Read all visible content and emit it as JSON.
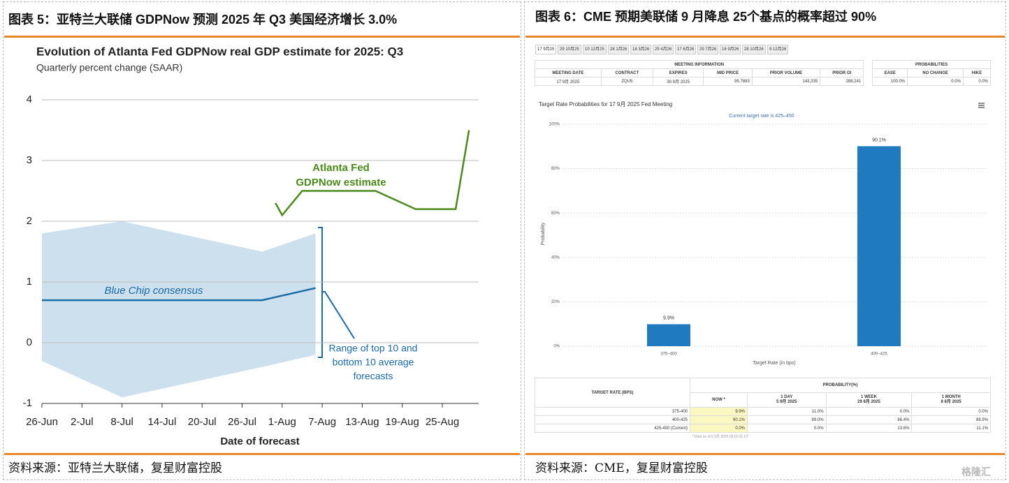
{
  "panels": [
    {
      "header": "图表 5：亚特兰大联储 GDPNow 预测 2025 年 Q3 美国经济增长 3.0%",
      "source": "资料来源：亚特兰大联储，复星财富控股"
    },
    {
      "header": "图表 6：CME 预期美联储 9 月降息 25个基点的概率超过 90%",
      "source": "资料来源：CME，复星财富控股"
    }
  ],
  "chart_data": [
    {
      "type": "line",
      "title": "Evolution of Atlanta Fed GDPNow real GDP estimate for 2025: Q3",
      "subtitle": "Quarterly percent change (SAAR)",
      "x_label": "Date of forecast",
      "categories": [
        "26-Jun",
        "2-Jul",
        "8-Jul",
        "14-Jul",
        "20-Jul",
        "26-Jul",
        "1-Aug",
        "7-Aug",
        "13-Aug",
        "19-Aug",
        "25-Aug"
      ],
      "ylim": [
        -1,
        4
      ],
      "yticks": [
        4,
        3,
        2,
        1,
        0,
        -1
      ],
      "grid": true,
      "series": [
        {
          "label": [
            "Blue Chip consensus"
          ],
          "color": "#1a6aa5",
          "x": [
            "26-Jun",
            "29-Jul",
            "6-Aug"
          ],
          "values": [
            0.7,
            0.7,
            0.9
          ]
        },
        {
          "label": [
            "Atlanta Fed",
            "GDPNow estimate"
          ],
          "color": "#4a8a1a",
          "x": [
            "31-Jul",
            "1-Aug",
            "4-Aug",
            "15-Aug",
            "21-Aug",
            "27-Aug",
            "29-Aug"
          ],
          "values": [
            2.3,
            2.1,
            2.5,
            2.5,
            2.2,
            2.2,
            3.5
          ]
        }
      ],
      "band": {
        "label": [
          "Range of top 10 and",
          "bottom 10 average",
          "forecasts"
        ],
        "color": "#c3dbeb",
        "x": [
          "26-Jun",
          "8-Jul",
          "29-Jul",
          "6-Aug"
        ],
        "upper": [
          1.8,
          2.0,
          1.5,
          1.8
        ],
        "lower": [
          -0.3,
          -0.9,
          -0.4,
          -0.2
        ]
      }
    },
    {
      "type": "bar",
      "title": "Target Rate Probabilities for 17 9月 2025 Fed Meeting",
      "subtitle": "Current target rate is 425–450",
      "x_label": "Target Rate (in bps)",
      "y_label": "Probability",
      "categories": [
        "375–400",
        "400–425"
      ],
      "values": [
        9.9,
        90.1
      ],
      "value_labels": [
        "9.9%",
        "90.1%"
      ],
      "color": "#1f7ac0",
      "ylim": [
        0,
        100
      ],
      "yticks": [
        {
          "value": 0,
          "label": "0%"
        },
        {
          "value": 20,
          "label": "20%"
        },
        {
          "value": 40,
          "label": "40%"
        },
        {
          "value": 60,
          "label": "60%"
        },
        {
          "value": 80,
          "label": "80%"
        },
        {
          "value": 100,
          "label": "100%"
        }
      ],
      "grid": true
    }
  ],
  "cme": {
    "tabs": [
      "17 9月25",
      "29 10月25",
      "10 12月25",
      "28 1月26",
      "18 3月26",
      "29 4月26",
      "17 6月26",
      "29 7月26",
      "16 9月26",
      "28 10月26",
      "9 12月26"
    ],
    "meeting_table": {
      "groups": [
        "MEETING INFORMATION",
        "PROBABILITIES"
      ],
      "columns": [
        "MEETING DATE",
        "CONTRACT",
        "EXPIRES",
        "MID PRICE",
        "PRIOR VOLUME",
        "PRIOR OI",
        "EASE",
        "NO CHANGE",
        "HIKE"
      ],
      "row": [
        "17 9月 2025",
        "ZQU5",
        "30 9月 2025",
        "95.7883",
        "143,335",
        "288,241",
        "100.0%",
        "0.0%",
        "0.0%"
      ]
    },
    "prob_table": {
      "first_col": "TARGET RATE (BPS)",
      "group": "PROBABILITY(%)",
      "columns": [
        [
          "NOW *"
        ],
        [
          "1 DAY",
          "5 9月 2025"
        ],
        [
          "1 WEEK",
          "29 8月 2025"
        ],
        [
          "1 MONTH",
          "8 8月 2025"
        ]
      ],
      "rows": [
        [
          "375-400",
          "9.9%",
          "11.0%",
          "0.0%",
          "0.0%"
        ],
        [
          "400-425",
          "90.1%",
          "89.0%",
          "86.4%",
          "88.9%"
        ],
        [
          "425-450 (Current)",
          "0.0%",
          "0.0%",
          "13.6%",
          "11.1%"
        ]
      ]
    },
    "note": "* Data as of 6 9月 2025 03:01:31 CT"
  },
  "watermark": "格隆汇"
}
